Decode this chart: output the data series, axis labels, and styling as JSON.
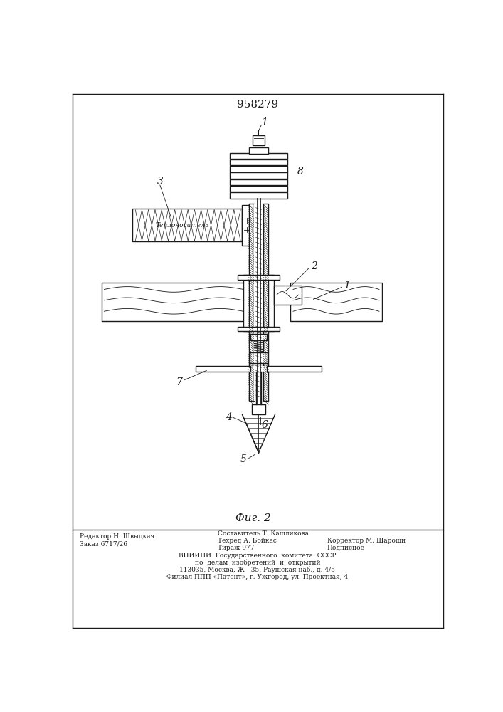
{
  "title": "958279",
  "fig_label": "Фиг. 2",
  "background_color": "#ffffff",
  "color": "#1a1a1a",
  "footer_col1_line1": "Редактор Н. Швыдкая",
  "footer_col1_line2": "Заказ 6717/26",
  "footer_center_line0": "Составитель Т. Кашликова",
  "footer_center_line1": "Техред А. Бойкас",
  "footer_center_line2": "Тираж 977",
  "footer_right_line1": "Корректор М. Шароши",
  "footer_right_line2": "Подписное",
  "footer_vnipi_1": "ВНИИПИ  Государственного  комитета  СССР",
  "footer_vnipi_2": "по  делам  изобретений  и  открытий",
  "footer_vnipi_3": "113035, Москва, Ж—35, Раушская наб., д. 4/5",
  "footer_vnipi_4": "Филиал ППП «Патент», г. Ужгород, ул. Проектная, 4",
  "label_teplo": "Теплоноситель"
}
